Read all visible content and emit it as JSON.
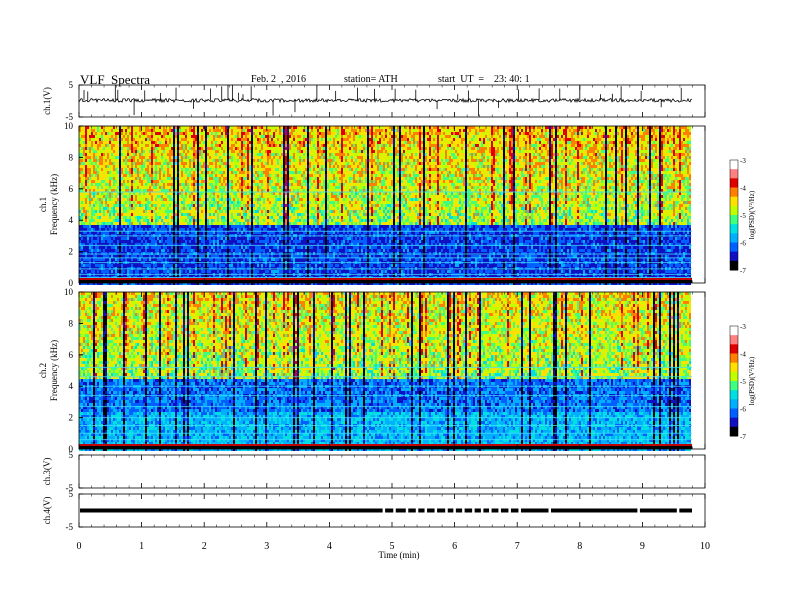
{
  "header": {
    "title": "VLF  Spectra",
    "date": "Feb. 2  , 2016",
    "station": "station= ATH",
    "start": "start  UT  =    23: 40: 1"
  },
  "chart_data": [
    {
      "type": "line",
      "name": "ch1-waveform",
      "ylabel": "ch.1(V)",
      "ylim": [
        -5,
        5
      ],
      "yticks": [
        "5",
        "-5"
      ],
      "xlim": [
        0,
        10
      ],
      "baseline": 0.2,
      "spikes_min": [
        0.08,
        0.14,
        0.58,
        0.62,
        0.88,
        1.05,
        1.3,
        1.55,
        1.83,
        2.1,
        2.28,
        2.38,
        2.45,
        2.55,
        2.62,
        2.75,
        3.1,
        3.45,
        3.8,
        4.1,
        4.45,
        4.72,
        5.05,
        5.38,
        5.72,
        6.05,
        6.22,
        6.38,
        6.7,
        7.02,
        7.35,
        7.68,
        8.0,
        8.33,
        8.52,
        8.66,
        8.98,
        9.3,
        9.62
      ]
    },
    {
      "type": "heatmap",
      "name": "ch1-spectrogram",
      "ylabel": "ch.1\nFrequency  (kHz)",
      "xlim": [
        0,
        9.8
      ],
      "ylim": [
        0,
        10
      ],
      "yticks": [
        "0",
        "2",
        "4",
        "6",
        "8",
        "10"
      ],
      "colorbar": {
        "label": "log(PSD)(V²/Hz)",
        "ticks": [
          "-3",
          "-4",
          "-5",
          "-6",
          "-7"
        ],
        "range": [
          -7,
          -3
        ]
      },
      "lines_khz": [
        0.2,
        0.35,
        0.55,
        0.9,
        1.3,
        1.6,
        1.85,
        2.4,
        3.0,
        3.3,
        5.8
      ]
    },
    {
      "type": "heatmap",
      "name": "ch2-spectrogram",
      "ylabel": "ch.2\nFrequency  (kHz)",
      "xlim": [
        0,
        9.8
      ],
      "ylim": [
        0,
        10
      ],
      "yticks": [
        "0",
        "2",
        "4",
        "6",
        "8",
        "10"
      ],
      "colorbar": {
        "label": "log(PSD)(V²/Hz)",
        "ticks": [
          "-3",
          "-4",
          "-5",
          "-6",
          "-7"
        ],
        "range": [
          -7,
          -3
        ]
      },
      "lines_khz": [
        0.3,
        0.6,
        1.0,
        1.5,
        2.0,
        2.7,
        3.4,
        4.0,
        4.6,
        5.2
      ]
    },
    {
      "type": "line",
      "name": "ch3-waveform",
      "ylabel": "ch.3(V)",
      "ylim": [
        -5,
        5
      ],
      "yticks": [
        "5",
        "-5"
      ],
      "xlim": [
        0,
        10
      ],
      "baseline": null
    },
    {
      "type": "line",
      "name": "ch4-waveform",
      "ylabel": "ch.4(V)",
      "ylim": [
        -5,
        5
      ],
      "yticks": [
        "5",
        "-5"
      ],
      "xlim": [
        0,
        10
      ],
      "baseline": 0,
      "gaps_min": [
        4.85,
        5.02,
        5.22,
        5.38,
        5.52,
        5.68,
        5.85,
        5.98,
        6.12,
        6.28,
        6.42,
        6.55,
        6.7,
        6.86,
        7.02,
        7.5,
        8.92,
        9.55
      ]
    }
  ],
  "xaxis": {
    "label": "Time  (min)",
    "ticks": [
      "0",
      "1",
      "2",
      "3",
      "4",
      "5",
      "6",
      "7",
      "8",
      "9",
      "10"
    ],
    "range": [
      0,
      10
    ]
  },
  "colors": {
    "scale": [
      "#000000",
      "#1010c0",
      "#0060ff",
      "#00b0ff",
      "#00e0e0",
      "#40ff80",
      "#c0ff00",
      "#ffe000",
      "#ff8000",
      "#e00000",
      "#ff8080",
      "#ffffff"
    ]
  }
}
